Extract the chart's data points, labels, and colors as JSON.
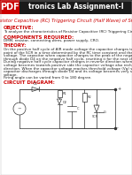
{
  "bg_color": "#ffffff",
  "header_bg": "#1a1a1a",
  "header_text": "tronics Lab Assignment-I",
  "header_text_color": "#ffffff",
  "header_fontsize": 5.5,
  "pdf_label": "PDF",
  "pdf_bg": "#cc0000",
  "pdf_color": "#ffffff",
  "subtitle": "Resistor Capacitive (RC) Triggering Circuit (Half Wave) of SCR",
  "subtitle_color": "#cc0000",
  "subtitle_fontsize": 3.8,
  "section_color": "#cc0000",
  "section_fontsize": 4.0,
  "body_fontsize": 3.0,
  "body_color": "#222222",
  "circuit_color": "#333333",
  "circuit_lw": 0.5,
  "objective_text": "To analyze the characteristics of Resistor Capacitive (RC) Triggering Circuit (Half Wave).",
  "components_text": "DMM, resistor, connecting wires, power supply, CRO.",
  "theory_lines": [
    "On the positive half cycle of AIR mode voltage the capacitor charges to the trigger",
    "point of the SCR in a time determined by the RC time constant and the rising supply",
    "voltage. The capacitor when capacitor charges to the peak of the negative voltage cycle",
    "through diode D4 on the negative half cycle, resetting it for the next charging cycle.",
    "During negative half cycle capacitor charges in reverse direction when the supply",
    "voltage becomes towards positive side the capacitor voltage also recharges in opposite",
    "direction. When the capacitor voltage reaches threshold voltage (Vg) will turn on and",
    "capacitor discharges through diode D4 and its voltage becomes very small positive",
    "voltage."
  ],
  "firing_text": "Firing angle can be varied from 0 to 180 degree.",
  "page_border_color": "#bbbbbb"
}
